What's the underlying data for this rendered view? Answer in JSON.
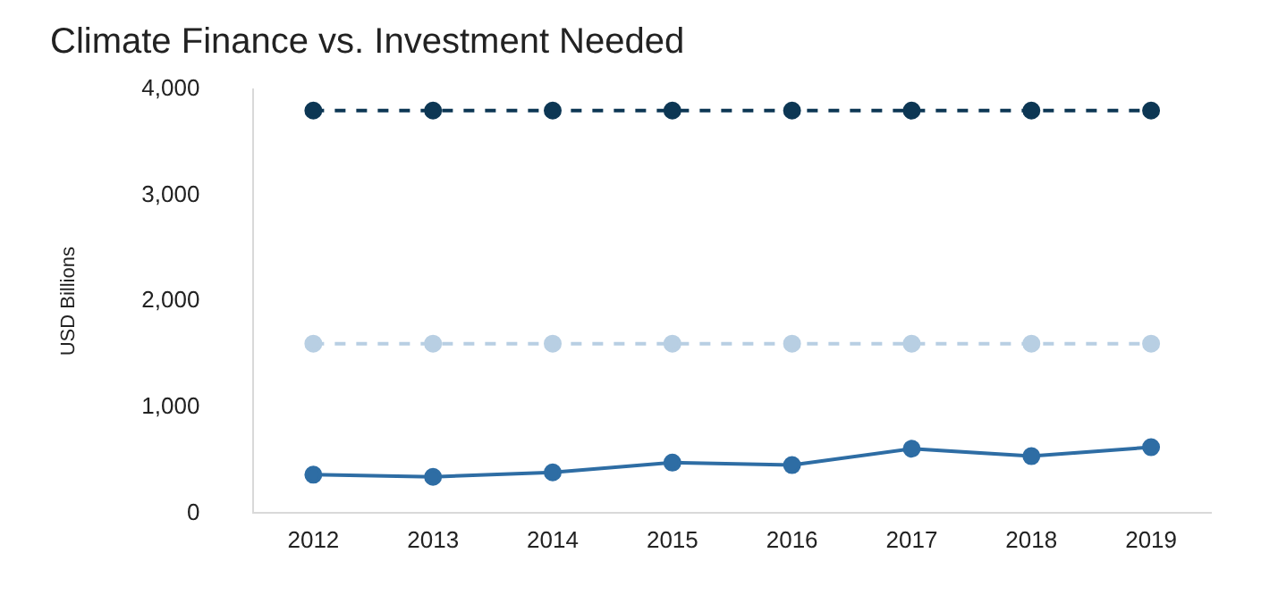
{
  "chart_data": {
    "type": "line",
    "title": "Climate Finance vs. Investment Needed",
    "ylabel": "USD Billions",
    "categories": [
      "2012",
      "2013",
      "2014",
      "2015",
      "2016",
      "2017",
      "2018",
      "2019"
    ],
    "series": [
      {
        "color": "#0d3754",
        "line_style": "dashed",
        "values": [
          3800,
          3800,
          3800,
          3800,
          3800,
          3800,
          3800,
          3800
        ]
      },
      {
        "color": "#b8cfe3",
        "line_style": "dashed",
        "values": [
          1600,
          1600,
          1600,
          1600,
          1600,
          1600,
          1600,
          1600
        ]
      },
      {
        "color": "#2e6da4",
        "line_style": "solid",
        "values": [
          363,
          343,
          385,
          477,
          454,
          608,
          538,
          623
        ]
      }
    ],
    "ylim": [
      0,
      4000
    ],
    "yticks": [
      {
        "value": 0,
        "label": "0"
      },
      {
        "value": 1000,
        "label": "1,000"
      },
      {
        "value": 2000,
        "label": "2,000"
      },
      {
        "value": 3000,
        "label": "3,000"
      },
      {
        "value": 4000,
        "label": "4,000"
      }
    ],
    "grid": false,
    "legend": false,
    "marker": "circle"
  }
}
